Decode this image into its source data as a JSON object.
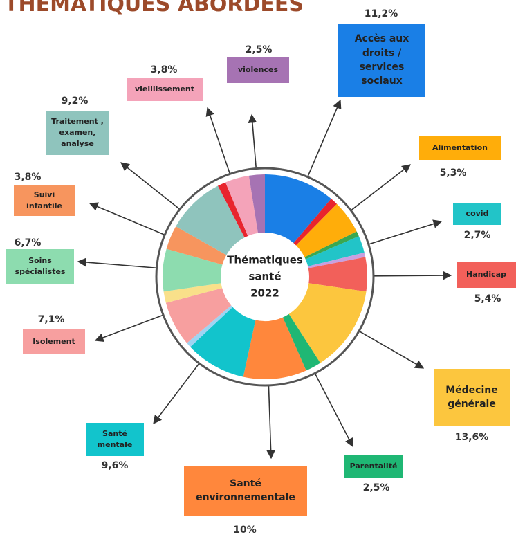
{
  "chart_data": {
    "type": "donut",
    "title": "THÉMATIQUES ABORDÉES",
    "center_label": [
      "Thématiques",
      "santé",
      "2022"
    ],
    "categories": [
      "Accès aux droits / services sociaux",
      null,
      "Alimentation",
      null,
      "covid",
      null,
      "Handicap",
      "Médecine générale",
      "Parentalité",
      "Santé environnementale",
      "Santé mentale",
      null,
      "Isolement",
      null,
      "Soins spécialistes",
      "Suivi infantile",
      "Traitement , examen, analyse",
      null,
      "vieillissement",
      "violences"
    ],
    "values": [
      11.2,
      1.2,
      5.3,
      0.8,
      2.7,
      0.7,
      5.4,
      13.6,
      2.5,
      10,
      9.6,
      0.8,
      7.1,
      1.8,
      6.7,
      3.8,
      9.2,
      1.3,
      3.8,
      2.5
    ],
    "value_labels": [
      "11,2%",
      null,
      "5,3%",
      null,
      "2,7%",
      null,
      "5,4%",
      "13,6%",
      "2,5%",
      "10%",
      "9,6%",
      null,
      "7,1%",
      null,
      "6,7%",
      "3,8%",
      "9,2%",
      null,
      "3,8%",
      "2,5%"
    ],
    "colors": [
      "#1a7fe6",
      "#e8252e",
      "#ffad0a",
      "#3aa850",
      "#22c4c8",
      "#c8a0e0",
      "#f2605a",
      "#fcc63e",
      "#1fb774",
      "#ff873c",
      "#12c4cc",
      "#9fd4f2",
      "#f79f9f",
      "#f9e08a",
      "#8ddcaf",
      "#f7955e",
      "#8fc4bd",
      "#e8252e",
      "#f4a3b9",
      "#a673b3"
    ]
  }
}
